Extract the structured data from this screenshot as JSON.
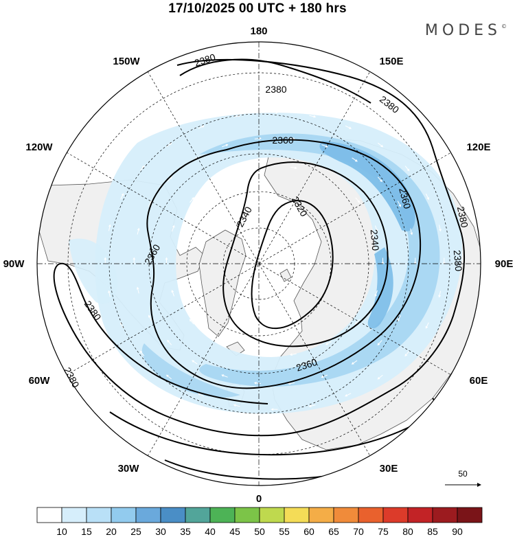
{
  "header": {
    "title": "17/10/2025  00 UTC  + 180 hrs",
    "brand": "MODES",
    "brand_mark": "©"
  },
  "map": {
    "projection": "north polar stereographic",
    "longitude_labels": {
      "top": "180",
      "bottom": "0",
      "left": "90W",
      "right": "90E",
      "upper_left": "150W",
      "upper_right": "150E",
      "left_upper": "120W",
      "right_upper": "120E",
      "left_lower": "60W",
      "right_lower": "60E",
      "lower_left": "30W",
      "lower_right": "30E"
    },
    "contour_labels": [
      "2320",
      "2340",
      "2340",
      "2360",
      "2360",
      "2360",
      "2360",
      "2380",
      "2380",
      "2380",
      "2380",
      "2380",
      "2380",
      "2380"
    ],
    "colors": {
      "land": "#f0f0f0",
      "ocean": "#ffffff",
      "wind_light": "#d6eefb",
      "wind_mid": "#a8d6f2",
      "wind_strong": "#7cbde8",
      "wind_max": "#5aa3dc",
      "contour": "#000000"
    }
  },
  "reference_vector": {
    "value": "50"
  },
  "colorbar": {
    "tick_labels": [
      "10",
      "15",
      "20",
      "25",
      "30",
      "35",
      "40",
      "45",
      "50",
      "55",
      "60",
      "65",
      "70",
      "75",
      "80",
      "85",
      "90"
    ],
    "colors": [
      "#ffffff",
      "#d6eefb",
      "#b9e0f7",
      "#92cbee",
      "#6aa9dc",
      "#4a8ec6",
      "#52a59a",
      "#4db356",
      "#7cc448",
      "#bfd94e",
      "#f4dc57",
      "#f4ad47",
      "#f08b3a",
      "#e9612d",
      "#dc3b2a",
      "#c22326",
      "#9c1b1f",
      "#7a1418"
    ]
  }
}
